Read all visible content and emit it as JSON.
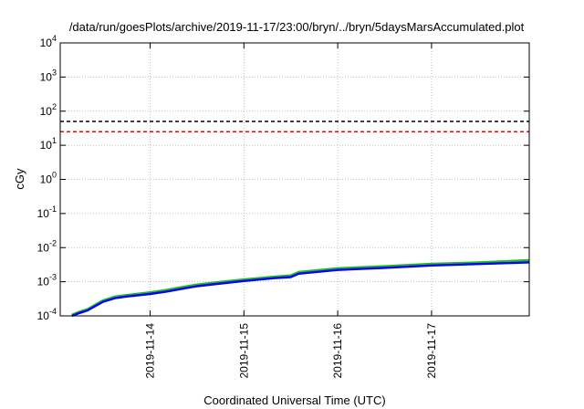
{
  "chart_data": {
    "type": "line",
    "title": "/data/run/goesPlots/archive/2019-11-17/23:00/bryn/../bryn/5daysMarsAccumulated.plot",
    "xlabel": "Coordinated Universal Time (UTC)",
    "ylabel": "cGy",
    "yscale": "log",
    "ylim": [
      0.0001,
      10000
    ],
    "xlim": [
      "2019-11-13 01:00",
      "2019-11-18 01:00"
    ],
    "grid": true,
    "x_ticks": [
      "2019-11-14",
      "2019-11-15",
      "2019-11-16",
      "2019-11-17"
    ],
    "y_ticks": [
      {
        "value": 0.0001,
        "base": "10",
        "exp": "-4"
      },
      {
        "value": 0.001,
        "base": "10",
        "exp": "-3"
      },
      {
        "value": 0.01,
        "base": "10",
        "exp": "-2"
      },
      {
        "value": 0.1,
        "base": "10",
        "exp": "-1"
      },
      {
        "value": 1,
        "base": "10",
        "exp": "0"
      },
      {
        "value": 10,
        "base": "10",
        "exp": "1"
      },
      {
        "value": 100,
        "base": "10",
        "exp": "2"
      },
      {
        "value": 1000,
        "base": "10",
        "exp": "3"
      },
      {
        "value": 10000,
        "base": "10",
        "exp": "4"
      }
    ],
    "reference_lines": [
      {
        "y": 50,
        "color": "#000000",
        "style": "dashed"
      },
      {
        "y": 25,
        "color": "#ff0000",
        "style": "dashed"
      }
    ],
    "series": [
      {
        "color": "#22bb22",
        "x": [
          "2019-11-13 04:00",
          "2019-11-13 06:00",
          "2019-11-13 08:00",
          "2019-11-13 10:00",
          "2019-11-13 12:00",
          "2019-11-13 15:00",
          "2019-11-13 18:00",
          "2019-11-14 00:00",
          "2019-11-14 04:00",
          "2019-11-14 08:00",
          "2019-11-14 12:00",
          "2019-11-14 16:00",
          "2019-11-15 00:00",
          "2019-11-15 08:00",
          "2019-11-15 12:00",
          "2019-11-15 14:00",
          "2019-11-16 00:00",
          "2019-11-16 12:00",
          "2019-11-17 00:00",
          "2019-11-17 12:00",
          "2019-11-18 01:00"
        ],
        "y": [
          0.000105,
          0.00013,
          0.000155,
          0.00021,
          0.00028,
          0.00036,
          0.0004,
          0.00048,
          0.00056,
          0.00068,
          0.00081,
          0.00092,
          0.00115,
          0.0014,
          0.0015,
          0.0019,
          0.00245,
          0.0028,
          0.0033,
          0.0036,
          0.0042
        ]
      },
      {
        "color": "#0000ff",
        "x": [
          "2019-11-13 04:00",
          "2019-11-13 06:00",
          "2019-11-13 08:00",
          "2019-11-13 10:00",
          "2019-11-13 12:00",
          "2019-11-13 15:00",
          "2019-11-13 18:00",
          "2019-11-14 00:00",
          "2019-11-14 04:00",
          "2019-11-14 08:00",
          "2019-11-14 12:00",
          "2019-11-14 16:00",
          "2019-11-15 00:00",
          "2019-11-15 08:00",
          "2019-11-15 12:00",
          "2019-11-15 14:00",
          "2019-11-16 00:00",
          "2019-11-16 12:00",
          "2019-11-17 00:00",
          "2019-11-17 12:00",
          "2019-11-18 01:00"
        ],
        "y": [
          0.0001,
          0.000122,
          0.000145,
          0.000195,
          0.00026,
          0.00033,
          0.00037,
          0.00044,
          0.00051,
          0.00062,
          0.00074,
          0.00084,
          0.00105,
          0.00128,
          0.00137,
          0.00172,
          0.00222,
          0.00255,
          0.003,
          0.0033,
          0.0037
        ]
      }
    ]
  }
}
